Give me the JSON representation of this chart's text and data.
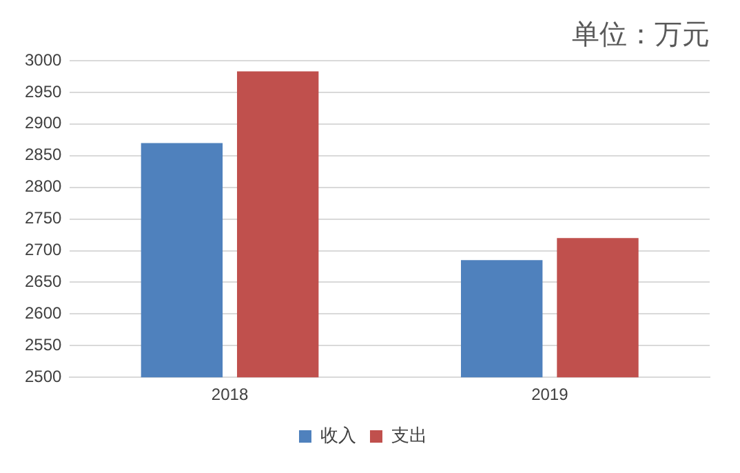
{
  "chart_data": {
    "type": "bar",
    "title": "单位：万元",
    "categories": [
      "2018",
      "2019"
    ],
    "series": [
      {
        "name": "收入",
        "color": "#4f81bd",
        "values": [
          2870,
          2685
        ]
      },
      {
        "name": "支出",
        "color": "#c0504d",
        "values": [
          2983,
          2720
        ]
      }
    ],
    "ylim": [
      2500,
      3000
    ],
    "yticks": [
      2500,
      2550,
      2600,
      2650,
      2700,
      2750,
      2800,
      2850,
      2900,
      2950,
      3000
    ],
    "grid": "y",
    "legend": "bottom"
  }
}
